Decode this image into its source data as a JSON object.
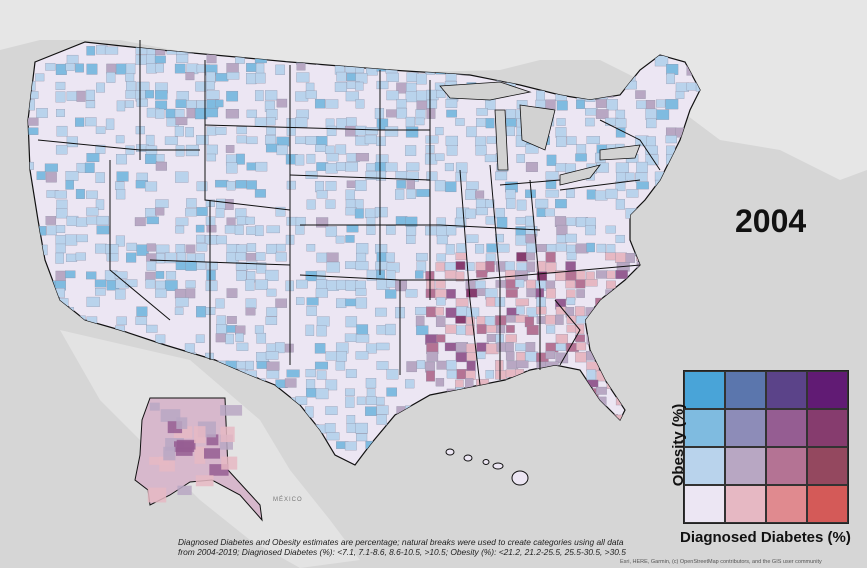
{
  "map": {
    "year": "2004",
    "background_color": "#d5d5d5",
    "land_color": "#ebebeb",
    "ocean_color": "#d2d2d2",
    "country_label_mexico": "MÉXICO",
    "notes": {
      "line1": "Diagnosed Diabetes and Obesity estimates are percentage; natural breaks were used to create categories using all data",
      "line2": "from 2004-2019; Diagnosed Diabetes (%): <7.1, 7.1-8.6, 8.6-10.5, >10.5; Obesity (%): <21.2, 21.2-25.5, 25.5-30.5, >30.5"
    },
    "attribution": "Esri, HERE, Garmin, (c) OpenStreetMap contributors, and the GIS user community"
  },
  "legend": {
    "y_label": "Obesity (%)",
    "x_label": "Diagnosed Diabetes (%)",
    "colors": [
      [
        "#49a4d8",
        "#5b76ad",
        "#5b4389",
        "#611b74"
      ],
      [
        "#7fbbe0",
        "#8d8cb8",
        "#955d92",
        "#863c6e"
      ],
      [
        "#b9d3ec",
        "#b8a7c3",
        "#b47394",
        "#94485f"
      ],
      [
        "#ece6f3",
        "#e6b8c3",
        "#e08a8f",
        "#d45a58"
      ]
    ]
  }
}
